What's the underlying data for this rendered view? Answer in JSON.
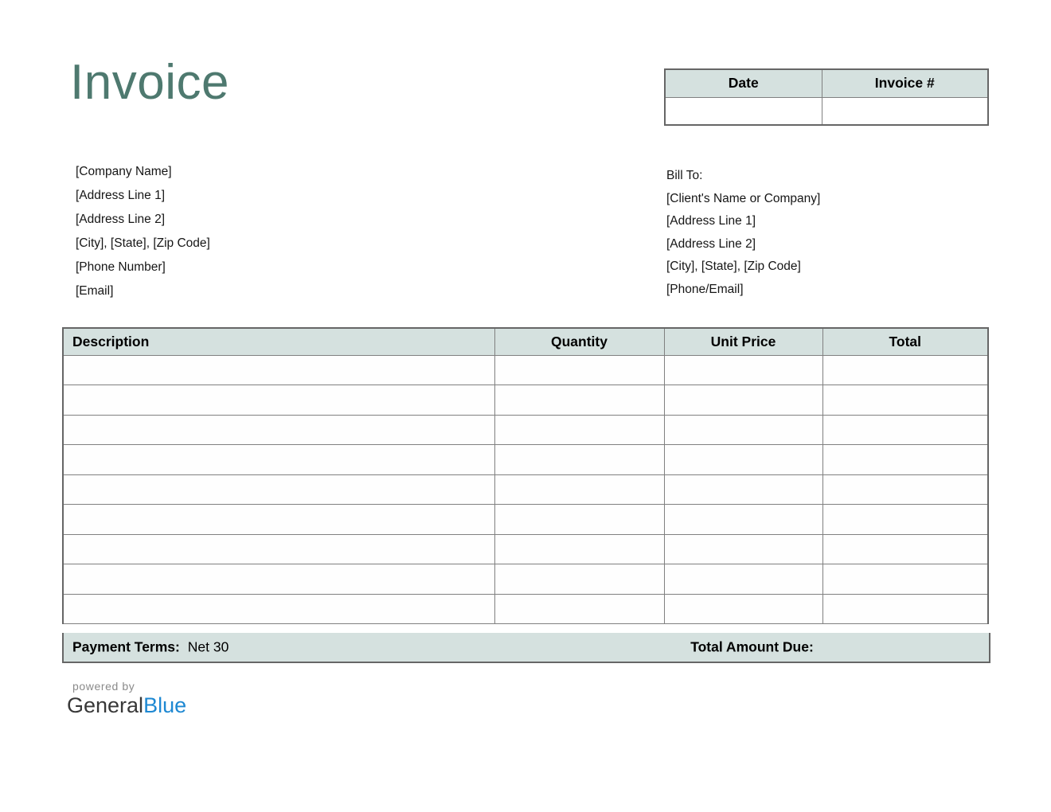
{
  "title": "Invoice",
  "colors": {
    "accent_teal": "#4e796f",
    "table_header_bg": "#d5e1df",
    "inner_border_gray": "#808080",
    "outer_border_gray": "#666666",
    "brand_blue": "#1e88d2",
    "powered_by_gray": "#8a8a8a"
  },
  "date_table": {
    "headers": [
      "Date",
      "Invoice #"
    ],
    "values": [
      "",
      ""
    ]
  },
  "company": {
    "lines": [
      "[Company Name]",
      "[Address Line 1]",
      "[Address Line 2]",
      "[City], [State], [Zip Code]",
      "[Phone Number]",
      "[Email]"
    ]
  },
  "bill_to": {
    "label": "Bill To:",
    "lines": [
      "[Client's Name or Company]",
      "[Address Line 1]",
      "[Address Line 2]",
      "[City], [State], [Zip Code]",
      "[Phone/Email]"
    ]
  },
  "items_table": {
    "headers": [
      "Description",
      "Quantity",
      "Unit Price",
      "Total"
    ],
    "empty_row_count": 9
  },
  "footer": {
    "payment_terms_label": "Payment Terms:",
    "payment_terms_value": "Net 30",
    "total_due_label": "Total Amount Due:"
  },
  "logo": {
    "powered_by": "powered by",
    "brand_part1": "General",
    "brand_part2": "Blue"
  }
}
